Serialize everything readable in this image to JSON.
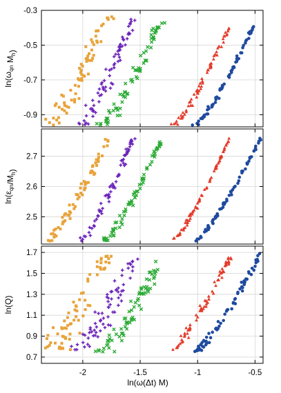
{
  "chart_data": {
    "type": "scatter",
    "layout": "three vertically stacked panels sharing the x axis",
    "xlabel": "ln(ω(Δt) M)",
    "xlim": [
      -2.36,
      -0.43
    ],
    "xticks": [
      -2,
      -1.5,
      -1,
      -0.5
    ],
    "xtick_labels": [
      "-2",
      "-1.5",
      "-1",
      "-0.5"
    ],
    "grid": true,
    "legend": "none",
    "series_style": [
      {
        "color": "#E8A33A",
        "marker": "square"
      },
      {
        "color": "#6A22B8",
        "marker": "plus"
      },
      {
        "color": "#2AAA34",
        "marker": "x"
      },
      {
        "color": "#E33B2A",
        "marker": "triangle"
      },
      {
        "color": "#1F4A9E",
        "marker": "circle"
      }
    ],
    "panels": [
      {
        "ylabel": "ln(ωqn Mh)",
        "ylabel_main1": "ln(ω",
        "ylabel_sub": "qn",
        "ylabel_main2": " M",
        "ylabel_sub2": "h",
        "ylabel_main3": ")",
        "ylim": [
          -0.97,
          -0.3
        ],
        "yticks": [
          -0.9,
          -0.7,
          -0.5,
          -0.3
        ],
        "ytick_labels": [
          "-0.9",
          "-0.7",
          "-0.5",
          "-0.3"
        ],
        "series": [
          {
            "x0": -2.3,
            "x1": -1.78,
            "y0": -0.96,
            "y1": -0.33,
            "scatter": 0.1
          },
          {
            "x0": -2.02,
            "x1": -1.56,
            "y0": -0.96,
            "y1": -0.35,
            "scatter": 0.08
          },
          {
            "x0": -1.82,
            "x1": -1.31,
            "y0": -0.96,
            "y1": -0.35,
            "scatter": 0.07
          },
          {
            "x0": -1.22,
            "x1": -0.72,
            "y0": -0.97,
            "y1": -0.39,
            "scatter": 0.035
          },
          {
            "x0": -1.02,
            "x1": -0.51,
            "y0": -0.96,
            "y1": -0.39,
            "scatter": 0.025
          }
        ]
      },
      {
        "ylabel": "ln(εqn/Mh)",
        "ylabel_main1": "ln(ε",
        "ylabel_sub": "qn",
        "ylabel_main2": "/M",
        "ylabel_sub2": "h",
        "ylabel_main3": ")",
        "ylim": [
          2.41,
          2.79
        ],
        "yticks": [
          2.5,
          2.6,
          2.7
        ],
        "ytick_labels": [
          "2.5",
          "2.6",
          "2.7"
        ],
        "series": [
          {
            "x0": -2.3,
            "x1": -1.78,
            "y0": 2.42,
            "y1": 2.76,
            "scatter": 0.05
          },
          {
            "x0": -2.02,
            "x1": -1.56,
            "y0": 2.42,
            "y1": 2.76,
            "scatter": 0.045
          },
          {
            "x0": -1.82,
            "x1": -1.31,
            "y0": 2.42,
            "y1": 2.76,
            "scatter": 0.04
          },
          {
            "x0": -1.22,
            "x1": -0.72,
            "y0": 2.42,
            "y1": 2.76,
            "scatter": 0.02
          },
          {
            "x0": -1.02,
            "x1": -0.45,
            "y0": 2.42,
            "y1": 2.76,
            "scatter": 0.015
          }
        ]
      },
      {
        "ylabel": "ln(Q)",
        "ylabel_main1": "ln(Q)",
        "ylabel_sub": "",
        "ylabel_main2": "",
        "ylabel_sub2": "",
        "ylabel_main3": "",
        "ylim": [
          0.64,
          1.76
        ],
        "yticks": [
          0.7,
          0.9,
          1.1,
          1.3,
          1.5,
          1.7
        ],
        "ytick_labels": [
          "0.7",
          "0.9",
          "1.1",
          "1.3",
          "1.5",
          "1.7"
        ],
        "series": [
          {
            "x0": -2.3,
            "x1": -1.78,
            "y0": 0.76,
            "y1": 1.69,
            "scatter": 0.14
          },
          {
            "x0": -2.02,
            "x1": -1.56,
            "y0": 0.77,
            "y1": 1.65,
            "scatter": 0.12
          },
          {
            "x0": -1.82,
            "x1": -1.31,
            "y0": 0.75,
            "y1": 1.65,
            "scatter": 0.1
          },
          {
            "x0": -1.22,
            "x1": -0.72,
            "y0": 0.77,
            "y1": 1.65,
            "scatter": 0.05
          },
          {
            "x0": -1.02,
            "x1": -0.45,
            "y0": 0.75,
            "y1": 1.69,
            "scatter": 0.04
          }
        ]
      }
    ]
  }
}
